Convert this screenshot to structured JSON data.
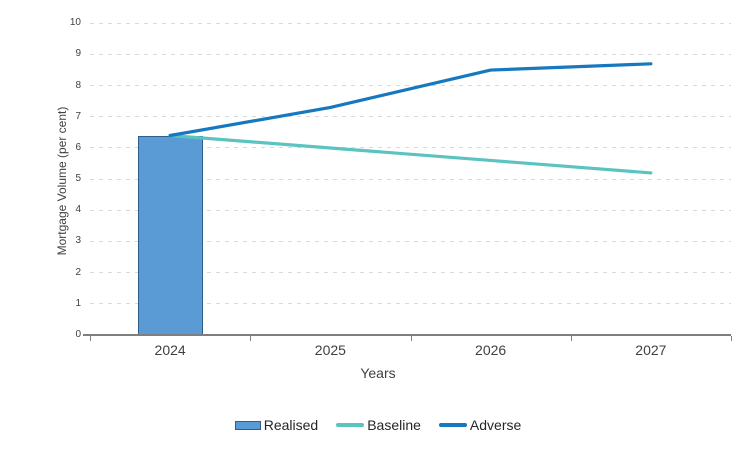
{
  "chart_data": {
    "type": "combo-bar-line",
    "title": "",
    "xlabel": "Years",
    "ylabel": "Mortgage Volume (per cent)",
    "categories": [
      "2024",
      "2025",
      "2026",
      "2027"
    ],
    "series": [
      {
        "name": "Realised",
        "type": "bar",
        "values": [
          6.4,
          null,
          null,
          null
        ],
        "fill": "#5b9bd5",
        "border": "#2e5f8c"
      },
      {
        "name": "Baseline",
        "type": "line",
        "values": [
          6.4,
          6.0,
          5.6,
          5.2
        ],
        "color": "#5bc4c0"
      },
      {
        "name": "Adverse",
        "type": "line",
        "values": [
          6.4,
          7.3,
          8.5,
          8.7
        ],
        "color": "#1678be"
      }
    ],
    "ylim": [
      0,
      10
    ],
    "ytick_step": 1,
    "grid": "horizontal-dashed",
    "grid_color": "#d9d9d9",
    "axis_color": "#7f7f7f",
    "legend_position": "bottom-center"
  }
}
